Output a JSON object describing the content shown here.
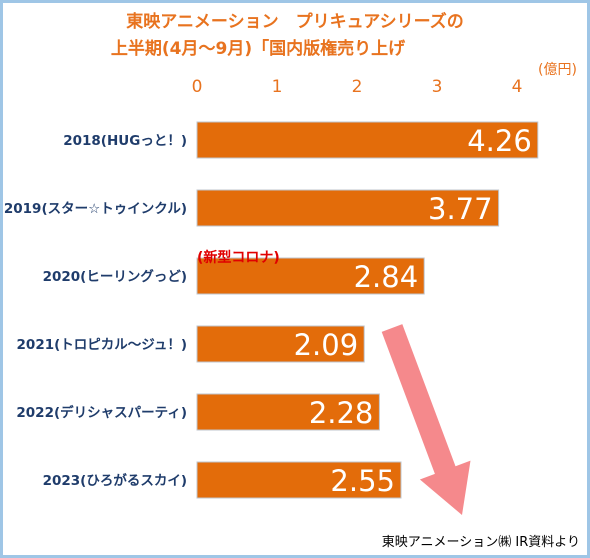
{
  "chart_data": {
    "type": "bar",
    "orientation": "horizontal",
    "title_lines": [
      "東映アニメーション　プリキュアシリーズの",
      "上半期(4月～9月)「国内版権売り上げ"
    ],
    "unit": "(億円)",
    "categories": [
      "2018(HUGっと！)",
      "2019(スター☆トゥインクル)",
      "2020(ヒーリングっど)",
      "2021(トロピカル～ジュ！)",
      "2022(デリシャスパーティ)",
      "2023(ひろがるスカイ)"
    ],
    "values": [
      4.26,
      3.77,
      2.84,
      2.09,
      2.28,
      2.55
    ],
    "value_labels": [
      "4.26",
      "3.77",
      "2.84",
      "2.09",
      "2.28",
      "2.55"
    ],
    "xlim": [
      0,
      4.3
    ],
    "xticks": [
      "0",
      "1",
      "2",
      "3",
      "4"
    ],
    "xaxis_position": "top",
    "grid": false,
    "annotation": "(新型コロナ)",
    "trend_arrow": "down",
    "source": "東映アニメーション㈱ IR資料より",
    "colors": {
      "bar": "#e36c0a",
      "title": "#e8731f",
      "category_text": "#1f3c6b",
      "annotation": "#e00000",
      "arrow": "#f47c80",
      "frame": "#9fc6e6"
    }
  }
}
